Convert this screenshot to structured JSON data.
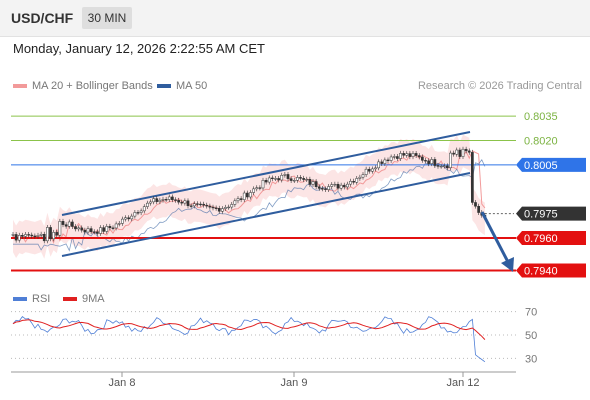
{
  "header": {
    "symbol": "USD/CHF",
    "timeframe": "30 MIN"
  },
  "timestamp": "Monday, January 12, 2026 2:22:55 AM CET",
  "legend": {
    "ma20_bb": "MA 20 + Bollinger Bands",
    "ma50": "MA 50",
    "ma20_color": "#f29a9a",
    "ma50_color": "#2f5d9e",
    "rsi": "RSI",
    "ma9": "9MA",
    "rsi_color": "#4f7fd6",
    "ma9_color": "#e02020"
  },
  "credit": "Research © 2026 Trading Central",
  "chart_data": [
    {
      "type": "candlestick",
      "ylim": [
        0.7928,
        0.8048
      ],
      "x_ticks": [
        "Jan 8",
        "Jan 9",
        "Jan 12"
      ],
      "levels": [
        {
          "value": 0.8035,
          "label": "0.8035",
          "kind": "resistance-minor",
          "color": "#8bc34a"
        },
        {
          "value": 0.802,
          "label": "0.8020",
          "kind": "resistance-minor",
          "color": "#8bc34a"
        },
        {
          "value": 0.8005,
          "label": "0.8005",
          "kind": "pivot",
          "color": "#2f74e8"
        },
        {
          "value": 0.7975,
          "label": "0.7975",
          "kind": "last-price",
          "color": "#333333"
        },
        {
          "value": 0.796,
          "label": "0.7960",
          "kind": "support",
          "color": "#e31010"
        },
        {
          "value": 0.794,
          "label": "0.7940",
          "kind": "support",
          "color": "#e31010"
        }
      ],
      "series": [
        {
          "name": "MA 20 + Bollinger Bands",
          "role": "ma20"
        },
        {
          "name": "MA 50",
          "role": "ma50"
        }
      ]
    },
    {
      "type": "line",
      "ylim": [
        20,
        80
      ],
      "y_ticks": [
        70,
        50,
        30
      ],
      "series": [
        {
          "name": "RSI",
          "role": "rsi"
        },
        {
          "name": "9MA",
          "role": "ma9"
        }
      ]
    }
  ]
}
